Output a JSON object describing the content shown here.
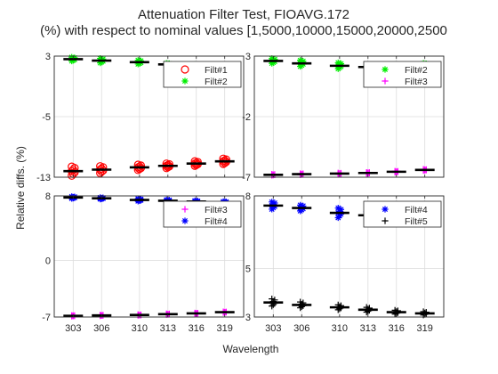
{
  "figure": {
    "title": "Attenuation Filter Test, FIOAVG.172",
    "subtitle": "(%) with respect to nominal values [1,5000,10000,15000,20000,2500",
    "ylabel": "Relative diffs. (%)",
    "xlabel": "Wavelength",
    "xticks": [
      "303",
      "306",
      "310",
      "313",
      "316",
      "319"
    ]
  },
  "chart_data": [
    {
      "type": "scatter",
      "panel": "top-left",
      "xlim": [
        301,
        321
      ],
      "ylim": [
        -13,
        3
      ],
      "yticks": [
        3,
        -5,
        -13
      ],
      "grid": true,
      "legend_position": "top-right",
      "series": [
        {
          "name": "Filt#1",
          "marker": "circle",
          "color": "#ff0000",
          "x": [
            303,
            306,
            310,
            313,
            316,
            319
          ],
          "spread": [
            0.6,
            0.45,
            0.35,
            0.3,
            0.3,
            0.35
          ],
          "values": [
            -12.2,
            -12.0,
            -11.7,
            -11.5,
            -11.2,
            -10.9
          ]
        },
        {
          "name": "Filt#2",
          "marker": "asterisk",
          "color": "#00ee00",
          "x": [
            303,
            306,
            310,
            313,
            316,
            319
          ],
          "spread": [
            0.25,
            0.3,
            0.25,
            0.15,
            0.1,
            0.1
          ],
          "values": [
            2.6,
            2.4,
            2.2,
            1.9,
            1.8,
            1.7
          ]
        }
      ]
    },
    {
      "type": "scatter",
      "panel": "top-right",
      "xlim": [
        301,
        321
      ],
      "ylim": [
        -7,
        3
      ],
      "yticks": [
        3,
        -2,
        -7
      ],
      "grid": true,
      "legend_position": "top-right",
      "series": [
        {
          "name": "Filt#2",
          "marker": "asterisk",
          "color": "#00ee00",
          "x": [
            303,
            306,
            310,
            313,
            316,
            319
          ],
          "spread": [
            0.2,
            0.25,
            0.25,
            0.1,
            0.1,
            0.1
          ],
          "values": [
            2.6,
            2.4,
            2.2,
            2.1,
            2.2,
            2.3
          ]
        },
        {
          "name": "Filt#3",
          "marker": "plus",
          "color": "#ff00ff",
          "x": [
            303,
            306,
            310,
            313,
            316,
            319
          ],
          "spread": [
            0.05,
            0.05,
            0.05,
            0.05,
            0.05,
            0.05
          ],
          "values": [
            -6.8,
            -6.75,
            -6.7,
            -6.65,
            -6.55,
            -6.4
          ]
        }
      ]
    },
    {
      "type": "scatter",
      "panel": "bottom-left",
      "xlim": [
        301,
        321
      ],
      "ylim": [
        -7,
        8
      ],
      "yticks": [
        8,
        0,
        -7
      ],
      "grid": true,
      "legend_position": "top-right",
      "series": [
        {
          "name": "Filt#3",
          "marker": "plus",
          "color": "#ff00ff",
          "x": [
            303,
            306,
            310,
            313,
            316,
            319
          ],
          "spread": [
            0.05,
            0.05,
            0.05,
            0.05,
            0.05,
            0.05
          ],
          "values": [
            -6.85,
            -6.8,
            -6.75,
            -6.65,
            -6.55,
            -6.4
          ]
        },
        {
          "name": "Filt#4",
          "marker": "asterisk",
          "color": "#0000ff",
          "x": [
            303,
            306,
            310,
            313,
            316,
            319
          ],
          "spread": [
            0.12,
            0.1,
            0.15,
            0.12,
            0.1,
            0.1
          ],
          "values": [
            7.8,
            7.7,
            7.5,
            7.4,
            7.3,
            7.2
          ]
        }
      ]
    },
    {
      "type": "scatter",
      "panel": "bottom-right",
      "xlim": [
        301,
        321
      ],
      "ylim": [
        3,
        8
      ],
      "yticks": [
        8,
        5,
        3
      ],
      "grid": true,
      "legend_position": "top-right",
      "series": [
        {
          "name": "Filt#4",
          "marker": "asterisk",
          "color": "#0000ff",
          "x": [
            303,
            306,
            310,
            313,
            316,
            319
          ],
          "spread": [
            0.15,
            0.12,
            0.2,
            0.15,
            0.1,
            0.1
          ],
          "values": [
            7.6,
            7.5,
            7.3,
            7.2,
            7.1,
            7.0
          ]
        },
        {
          "name": "Filt#5",
          "marker": "plus",
          "color": "#000000",
          "x": [
            303,
            306,
            310,
            313,
            316,
            319
          ],
          "spread": [
            0.15,
            0.12,
            0.1,
            0.1,
            0.08,
            0.07
          ],
          "values": [
            3.6,
            3.5,
            3.4,
            3.3,
            3.2,
            3.15
          ]
        }
      ]
    }
  ]
}
